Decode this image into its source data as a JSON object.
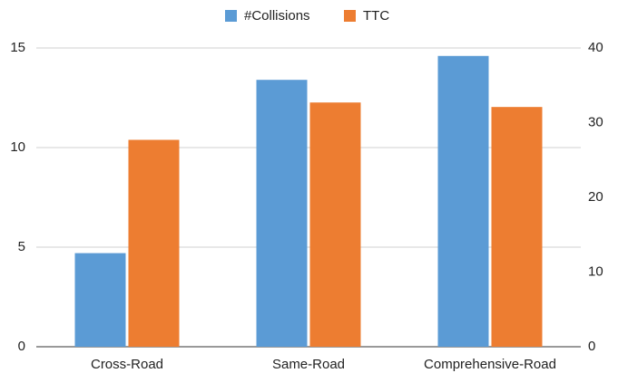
{
  "chart_data": {
    "type": "bar",
    "categories": [
      "Cross-Road",
      "Same-Road",
      "Comprehensive-Road"
    ],
    "series": [
      {
        "name": "#Collisions",
        "color": "#5b9bd5",
        "values": [
          4.7,
          13.4,
          14.6
        ]
      },
      {
        "name": "TTC",
        "color": "#ed7d31",
        "values": [
          27.7,
          32.7,
          32.1
        ],
        "axis": "y2"
      }
    ],
    "ylim": [
      0,
      15
    ],
    "yticks": [
      0,
      5,
      10,
      15
    ],
    "y2lim": [
      0,
      40
    ],
    "y2ticks": [
      0,
      10,
      20,
      30,
      40
    ],
    "grid": true,
    "legend": "top"
  }
}
